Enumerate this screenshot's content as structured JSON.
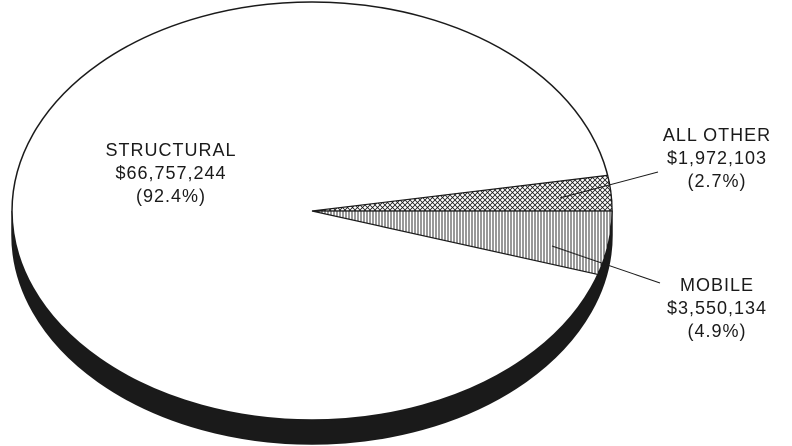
{
  "chart_data": {
    "type": "pie",
    "style": "3d",
    "colors": {
      "edge": "#1a1a1a",
      "side": "#1a1a1a",
      "top": "#ffffff"
    },
    "slices": [
      {
        "name": "STRUCTURAL",
        "value": 66757244,
        "value_label": "$66,757,244",
        "percent": 92.4,
        "percent_label": "(92.4%)",
        "fill": "plain"
      },
      {
        "name": "ALL OTHER",
        "value": 1972103,
        "value_label": "$1,972,103",
        "percent": 2.7,
        "percent_label": "(2.7%)",
        "fill": "crosshatch"
      },
      {
        "name": "MOBILE",
        "value": 3550134,
        "value_label": "$3,550,134",
        "percent": 4.9,
        "percent_label": "(4.9%)",
        "fill": "vertical-lines"
      }
    ]
  }
}
